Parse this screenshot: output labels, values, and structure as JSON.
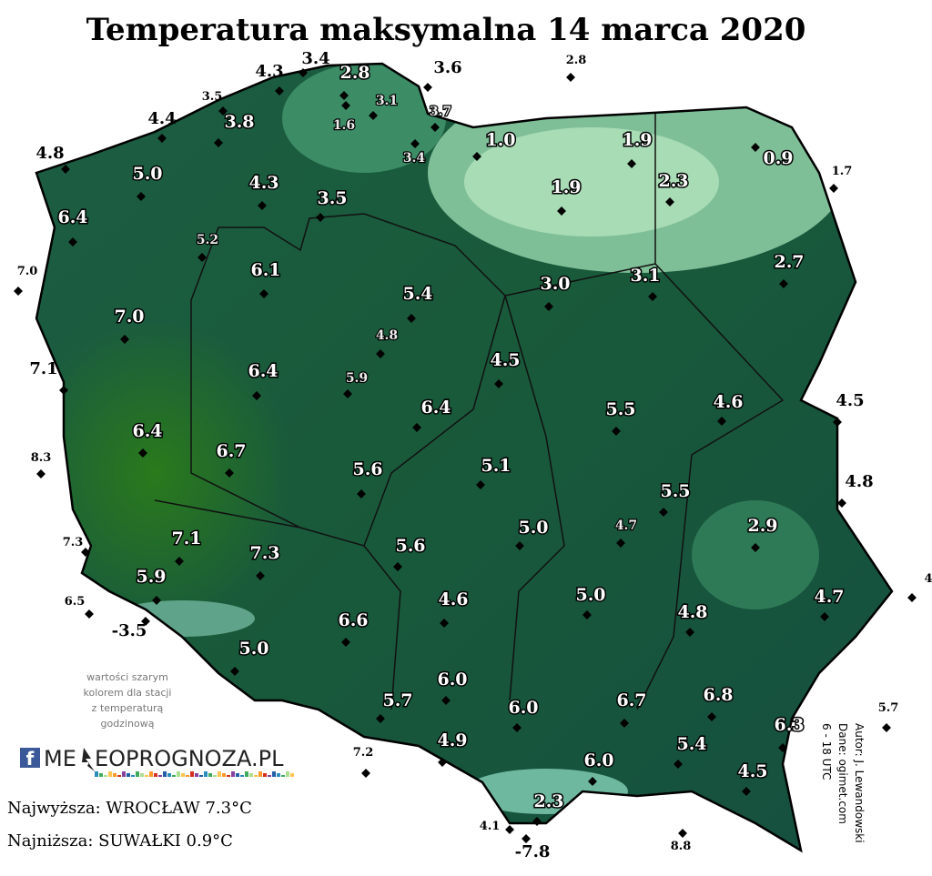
{
  "title": "Temperatura maksymalna 14 marca 2020",
  "stations": [
    "3.4",
    "4.3",
    "2.8",
    "3.6",
    "2.8",
    "3.5",
    "3.1",
    "3.7",
    "1.6",
    "3.8",
    "4.4",
    "1.0",
    "1.9",
    "0.9",
    "3.4",
    "4.8",
    "1.7",
    "5.0",
    "4.3",
    "3.5",
    "1.9",
    "2.3",
    "6.4",
    "5.2",
    "7.0",
    "6.1",
    "2.7",
    "3.0",
    "3.1",
    "5.4",
    "7.0",
    "4.8",
    "7.1",
    "4.5",
    "6.4",
    "5.9",
    "4.6",
    "4.5",
    "5.5",
    "6.4",
    "8.3",
    "6.4",
    "6.7",
    "5.1",
    "5.6",
    "4.8",
    "5.5",
    "4.7",
    "5.0",
    "2.9",
    "7.3",
    "7.1",
    "7.3",
    "5.6",
    "4",
    "5.9",
    "5.0",
    "4.6",
    "4.7",
    "6.5",
    "-3.5",
    "6.6",
    "4.8",
    "5.0",
    "6.0",
    "5.7",
    "6.0",
    "6.7",
    "6.8",
    "5.7",
    "6.3",
    "7.2",
    "4.9",
    "5.4",
    "6.0",
    "4.5",
    "2.3",
    "4.1",
    "8.8",
    "-7.8"
  ],
  "note": [
    "wartości szarym",
    "kolorem dla stacji",
    "z temperaturą",
    "godzinową"
  ],
  "logo": {
    "icon": "f",
    "left": "ME",
    "right": "EOPROGNOZA.PL"
  },
  "highest": "Najwyższa: WROCŁAW 7.3°C",
  "lowest": "Najniższa: SUWAŁKI 0.9°C",
  "credits": [
    "Autor: J. Lewandowski",
    "Dane: ogimet.com",
    "6 - 18 UTC"
  ]
}
